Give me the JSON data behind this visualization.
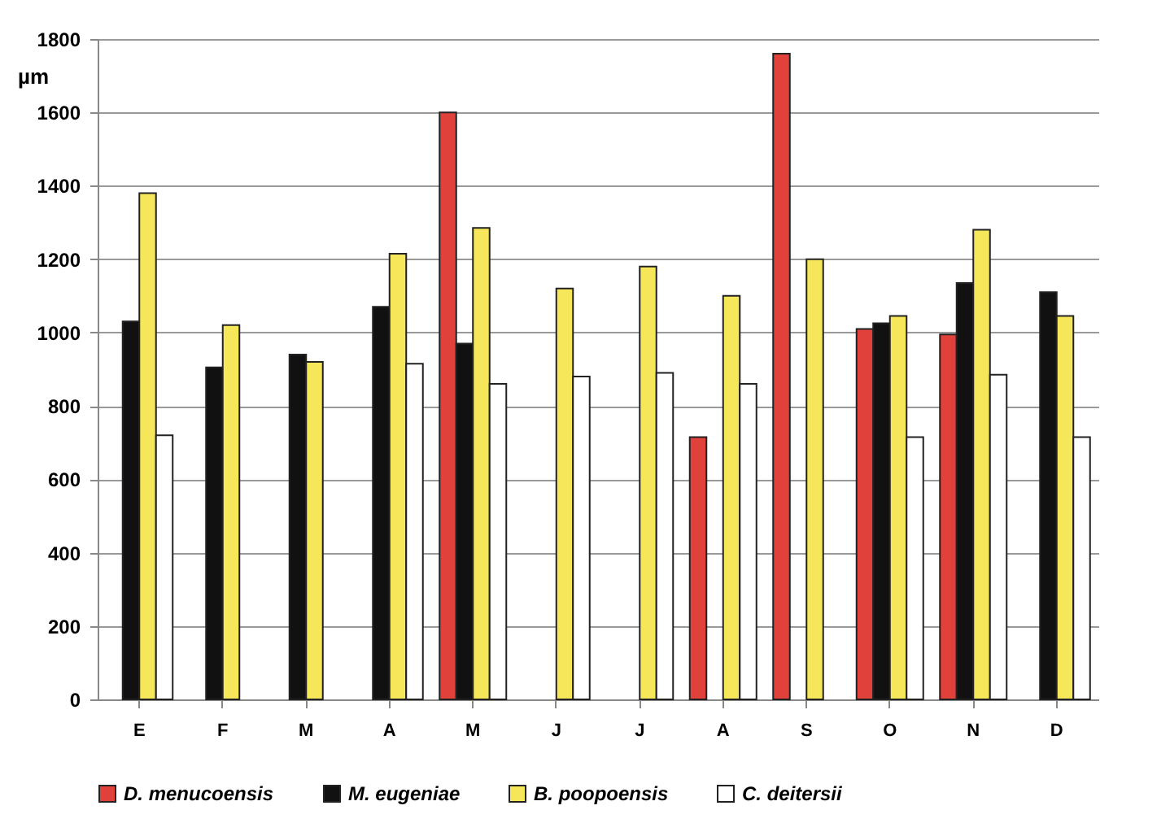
{
  "chart_data": {
    "type": "bar",
    "ylabel": "µm",
    "categories": [
      "E",
      "F",
      "M",
      "A",
      "M",
      "J",
      "J",
      "A",
      "S",
      "O",
      "N",
      "D"
    ],
    "series": [
      {
        "name": "D. menucoensis",
        "color": "#e0413a",
        "values": [
          null,
          null,
          null,
          null,
          1600,
          null,
          null,
          715,
          1760,
          1010,
          995,
          null
        ]
      },
      {
        "name": "M. eugeniae",
        "color": "#111111",
        "values": [
          1030,
          905,
          940,
          1070,
          970,
          null,
          null,
          null,
          null,
          1025,
          1135,
          1110
        ]
      },
      {
        "name": "B. poopoensis",
        "color": "#f5e65a",
        "values": [
          1380,
          1020,
          920,
          1215,
          1285,
          1120,
          1180,
          1100,
          1200,
          1045,
          1280,
          1045
        ]
      },
      {
        "name": "C. deitersii",
        "color": "#ffffff",
        "values": [
          720,
          null,
          null,
          915,
          860,
          880,
          890,
          860,
          null,
          715,
          885,
          715
        ]
      }
    ],
    "ylim": [
      0,
      1800
    ],
    "yticks": [
      0,
      200,
      400,
      600,
      800,
      1000,
      1200,
      1400,
      1600,
      1800
    ],
    "grid": "y",
    "legend": "bottom"
  }
}
